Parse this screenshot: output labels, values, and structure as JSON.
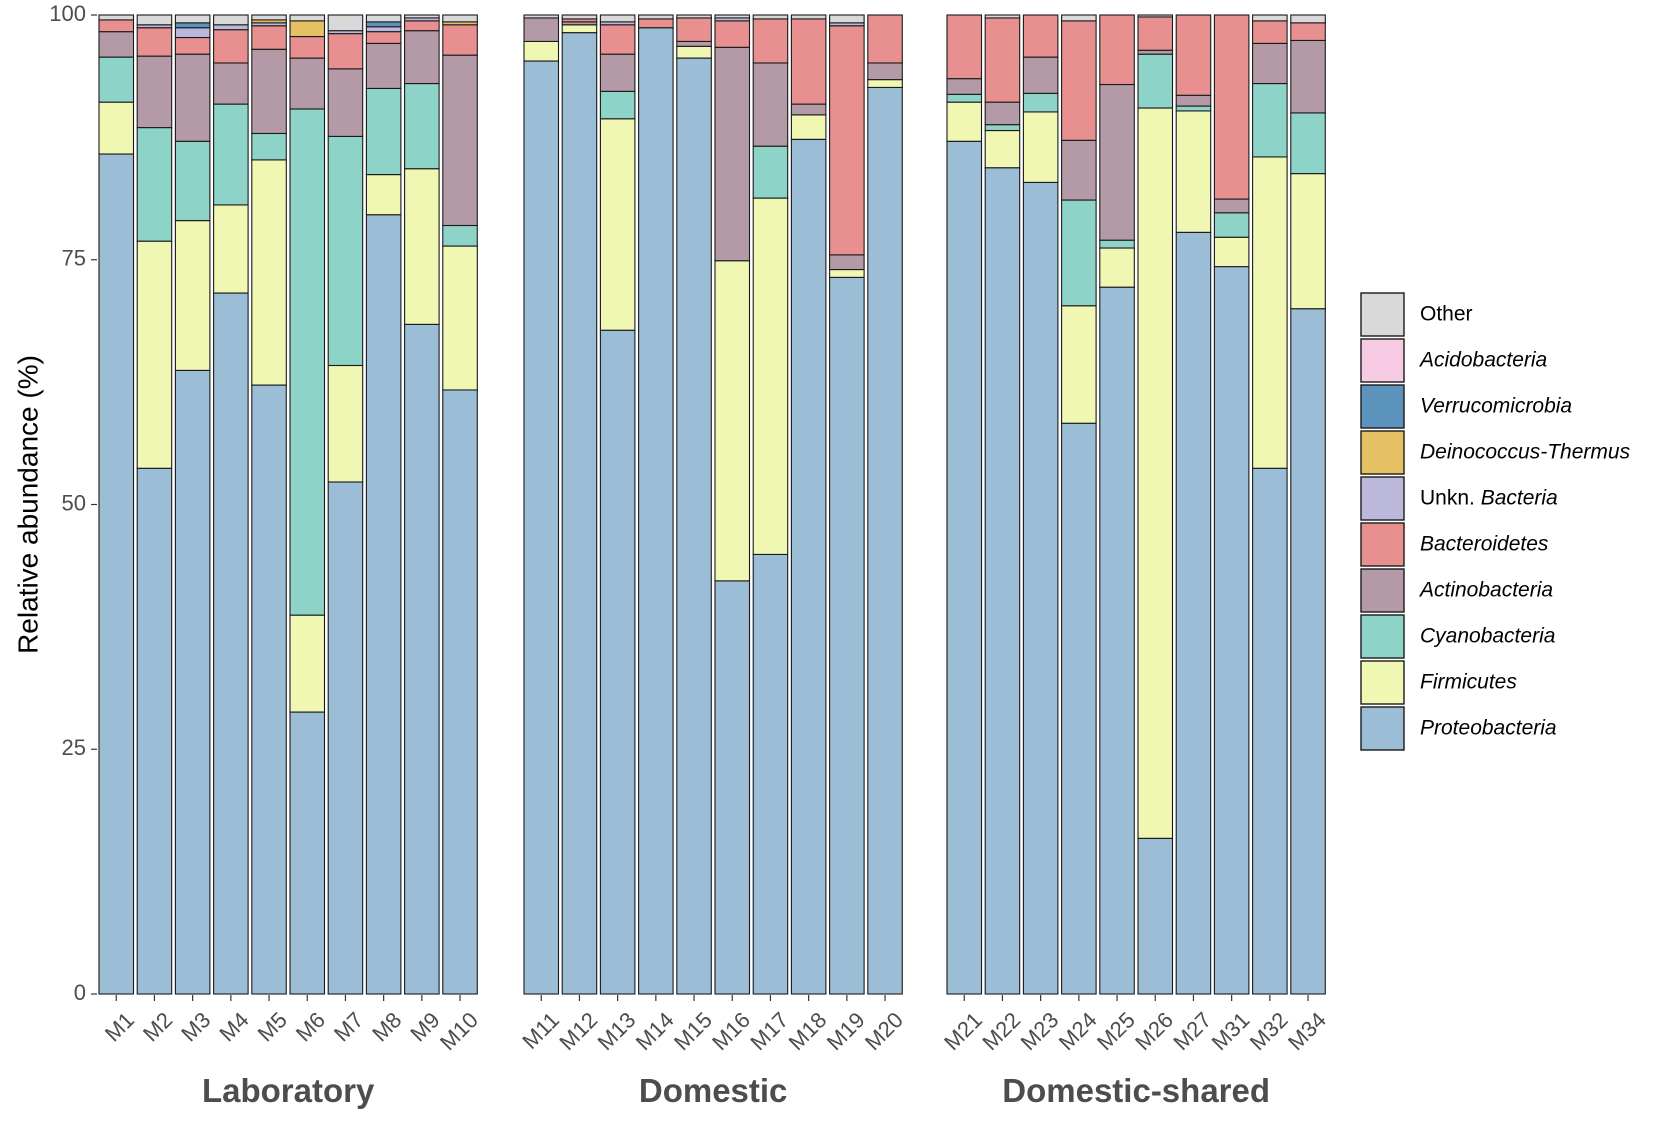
{
  "chart_data": {
    "type": "bar",
    "stacked": true,
    "ylabel": "Relative abundance (%)",
    "ylim": [
      0,
      100
    ],
    "yticks": [
      0,
      25,
      50,
      75,
      100
    ],
    "legend": {
      "placement": "right",
      "entries": [
        {
          "name": "Other",
          "color": "#d9d9d9",
          "italic": false,
          "prefix": ""
        },
        {
          "name": "Acidobacteria",
          "color": "#f7cbe3",
          "italic": true,
          "prefix": ""
        },
        {
          "name": "Verrucomicrobia",
          "color": "#5b93bd",
          "italic": true,
          "prefix": ""
        },
        {
          "name": "Deinococcus-Thermus",
          "color": "#e6c163",
          "italic": true,
          "prefix": ""
        },
        {
          "name": "Bacteria",
          "color": "#bcb8db",
          "italic": true,
          "prefix": "Unkn. "
        },
        {
          "name": "Bacteroidetes",
          "color": "#e89090",
          "italic": true,
          "prefix": ""
        },
        {
          "name": "Actinobacteria",
          "color": "#b49aa6",
          "italic": true,
          "prefix": ""
        },
        {
          "name": "Cyanobacteria",
          "color": "#8dd3c7",
          "italic": true,
          "prefix": ""
        },
        {
          "name": "Firmicutes",
          "color": "#f0f7b2",
          "italic": true,
          "prefix": ""
        },
        {
          "name": "Proteobacteria",
          "color": "#9bbdd6",
          "italic": true,
          "prefix": ""
        }
      ]
    },
    "stack_order": [
      "Proteobacteria",
      "Firmicutes",
      "Cyanobacteria",
      "Actinobacteria",
      "Bacteroidetes",
      "Unkn. Bacteria",
      "Deinococcus-Thermus",
      "Verrucomicrobia",
      "Acidobacteria",
      "Other"
    ],
    "facets": [
      {
        "label": "Laboratory",
        "samples": [
          {
            "name": "M1",
            "values": [
              85.8,
              5.3,
              4.6,
              2.6,
              1.2,
              0.0,
              0.0,
              0.0,
              0.0,
              0.5
            ]
          },
          {
            "name": "M2",
            "values": [
              53.7,
              23.2,
              11.6,
              7.3,
              2.9,
              0.3,
              0.0,
              0.0,
              0.0,
              1.0
            ]
          },
          {
            "name": "M3",
            "values": [
              63.7,
              15.3,
              8.1,
              8.9,
              1.7,
              1.0,
              0.0,
              0.5,
              0.0,
              0.8
            ]
          },
          {
            "name": "M4",
            "values": [
              71.6,
              9.0,
              10.3,
              4.2,
              3.4,
              0.5,
              0.0,
              0.0,
              0.0,
              1.0
            ]
          },
          {
            "name": "M5",
            "values": [
              62.2,
              23.0,
              2.7,
              8.6,
              2.4,
              0.3,
              0.3,
              0.0,
              0.0,
              0.5
            ]
          },
          {
            "name": "M6",
            "values": [
              28.8,
              9.9,
              51.7,
              5.2,
              2.2,
              0.0,
              1.6,
              0.0,
              0.0,
              0.6
            ]
          },
          {
            "name": "M7",
            "values": [
              52.3,
              11.9,
              23.4,
              6.9,
              3.6,
              0.3,
              0.0,
              0.0,
              0.0,
              1.6
            ]
          },
          {
            "name": "M8",
            "values": [
              79.6,
              4.1,
              8.8,
              4.6,
              1.2,
              0.5,
              0.0,
              0.5,
              0.0,
              0.7
            ]
          },
          {
            "name": "M9",
            "values": [
              68.4,
              15.9,
              8.7,
              5.4,
              1.0,
              0.3,
              0.0,
              0.0,
              0.0,
              0.3
            ]
          },
          {
            "name": "M10",
            "values": [
              61.7,
              14.7,
              2.1,
              17.4,
              3.1,
              0.0,
              0.3,
              0.0,
              0.0,
              0.7
            ]
          }
        ]
      },
      {
        "label": "Domestic",
        "samples": [
          {
            "name": "M11",
            "values": [
              95.3,
              2.0,
              0.0,
              2.4,
              0.0,
              0.0,
              0.0,
              0.0,
              0.0,
              0.3
            ]
          },
          {
            "name": "M12",
            "values": [
              98.2,
              0.8,
              0.0,
              0.3,
              0.3,
              0.0,
              0.0,
              0.0,
              0.0,
              0.4
            ]
          },
          {
            "name": "M13",
            "values": [
              67.8,
              21.6,
              2.8,
              3.8,
              3.0,
              0.3,
              0.0,
              0.0,
              0.0,
              0.7
            ]
          },
          {
            "name": "M14",
            "values": [
              98.7,
              0.0,
              0.0,
              0.0,
              0.9,
              0.0,
              0.0,
              0.0,
              0.0,
              0.4
            ]
          },
          {
            "name": "M15",
            "values": [
              95.6,
              1.2,
              0.0,
              0.5,
              2.4,
              0.0,
              0.0,
              0.0,
              0.0,
              0.3
            ]
          },
          {
            "name": "M16",
            "values": [
              42.2,
              32.7,
              0.0,
              21.8,
              2.7,
              0.3,
              0.0,
              0.0,
              0.0,
              0.3
            ]
          },
          {
            "name": "M17",
            "values": [
              44.9,
              36.4,
              5.3,
              8.5,
              4.5,
              0.0,
              0.0,
              0.0,
              0.0,
              0.4
            ]
          },
          {
            "name": "M18",
            "values": [
              87.3,
              2.5,
              0.0,
              1.1,
              8.7,
              0.0,
              0.0,
              0.0,
              0.0,
              0.4
            ]
          },
          {
            "name": "M19",
            "values": [
              73.2,
              0.8,
              0.0,
              1.5,
              23.4,
              0.3,
              0.0,
              0.0,
              0.0,
              0.8
            ]
          },
          {
            "name": "M20",
            "values": [
              92.6,
              0.8,
              0.0,
              1.7,
              4.9,
              0.0,
              0.0,
              0.0,
              0.0,
              0.0
            ]
          }
        ]
      },
      {
        "label": "Domestic-shared",
        "samples": [
          {
            "name": "M21",
            "values": [
              87.1,
              4.0,
              0.8,
              1.6,
              6.5,
              0.0,
              0.0,
              0.0,
              0.0,
              0.0
            ]
          },
          {
            "name": "M22",
            "values": [
              84.4,
              3.8,
              0.6,
              2.3,
              8.6,
              0.0,
              0.0,
              0.0,
              0.0,
              0.3
            ]
          },
          {
            "name": "M23",
            "values": [
              82.9,
              7.2,
              1.9,
              3.7,
              4.3,
              0.0,
              0.0,
              0.0,
              0.0,
              0.0
            ]
          },
          {
            "name": "M24",
            "values": [
              58.3,
              12.0,
              10.8,
              6.1,
              12.2,
              0.0,
              0.0,
              0.0,
              0.0,
              0.6
            ]
          },
          {
            "name": "M25",
            "values": [
              72.2,
              4.0,
              0.8,
              15.9,
              7.1,
              0.0,
              0.0,
              0.0,
              0.0,
              0.0
            ]
          },
          {
            "name": "M26",
            "values": [
              15.9,
              74.6,
              5.5,
              0.4,
              3.4,
              0.0,
              0.0,
              0.0,
              0.0,
              0.2
            ]
          },
          {
            "name": "M27",
            "values": [
              77.8,
              12.4,
              0.5,
              1.1,
              8.2,
              0.0,
              0.0,
              0.0,
              0.0,
              0.0
            ]
          },
          {
            "name": "M31",
            "values": [
              74.3,
              3.0,
              2.5,
              1.4,
              18.8,
              0.0,
              0.0,
              0.0,
              0.0,
              0.0
            ]
          },
          {
            "name": "M32",
            "values": [
              53.7,
              31.8,
              7.5,
              4.1,
              2.3,
              0.0,
              0.0,
              0.0,
              0.0,
              0.6
            ]
          },
          {
            "name": "M34",
            "values": [
              70.0,
              13.8,
              6.2,
              7.4,
              1.8,
              0.0,
              0.0,
              0.0,
              0.0,
              0.8
            ]
          }
        ]
      }
    ]
  }
}
